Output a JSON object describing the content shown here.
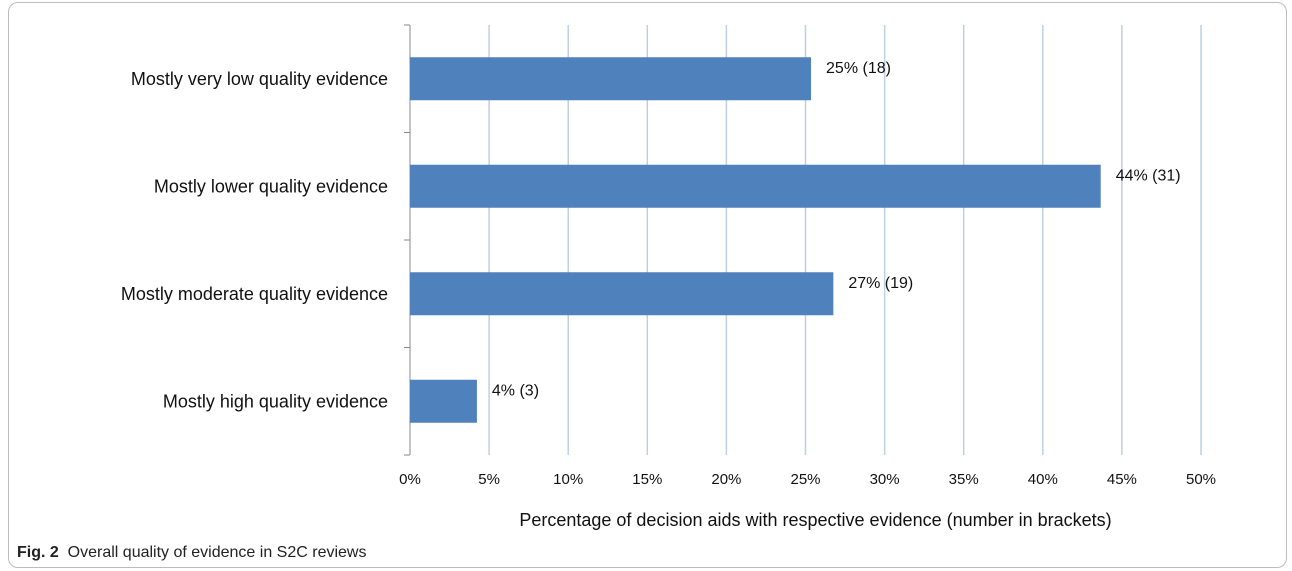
{
  "figure": {
    "label": "Fig. 2",
    "caption": "Overall quality of evidence in S2C reviews"
  },
  "colors": {
    "bar": "#4f81bd",
    "gridline": "#bfd0e3",
    "axis": "#888888",
    "text": "#111111"
  },
  "chart_data": {
    "type": "bar",
    "orientation": "horizontal",
    "categories": [
      "Mostly very low quality evidence",
      "Mostly lower quality evidence",
      "Mostly moderate quality evidence",
      "Mostly high quality evidence"
    ],
    "values": [
      25.35,
      43.66,
      26.76,
      4.23
    ],
    "data_labels": [
      "25% (18)",
      "44% (31)",
      "27% (19)",
      "4% (3)"
    ],
    "xlabel": "Percentage of decision aids with respective evidence (number in brackets)",
    "ylabel": "",
    "xlim": [
      0,
      50
    ],
    "x_ticks": [
      0,
      5,
      10,
      15,
      20,
      25,
      30,
      35,
      40,
      45,
      50
    ],
    "x_tick_labels": [
      "0%",
      "5%",
      "10%",
      "15%",
      "20%",
      "25%",
      "30%",
      "35%",
      "40%",
      "45%",
      "50%"
    ],
    "grid": "vertical",
    "legend": "none"
  }
}
